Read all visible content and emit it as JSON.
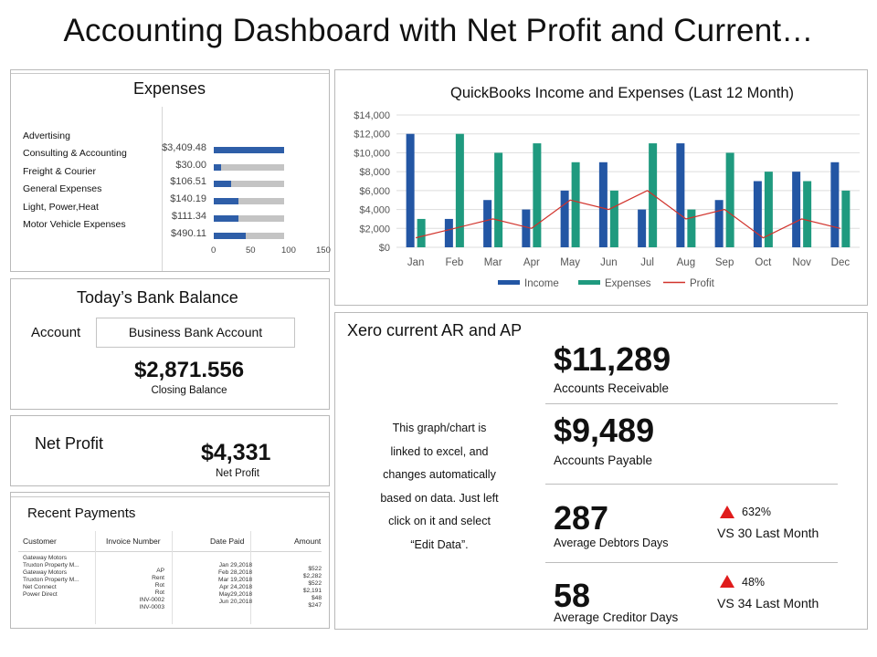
{
  "title": "Accounting Dashboard with Net Profit and Current…",
  "expenses": {
    "title": "Expenses",
    "categories": [
      "Advertising",
      "Consulting & Accounting",
      "Freight & Courier",
      "General Expenses",
      "Light, Power,Heat",
      "Motor Vehicle Expenses"
    ],
    "bar_labels": [
      "$3,409.48",
      "$30.00",
      "$106.51",
      "$140.19",
      "$111.34",
      "$490.11"
    ],
    "bar_fractions": [
      1.0,
      0.1,
      0.25,
      0.35,
      0.35,
      0.45
    ],
    "axis_ticks": [
      "0",
      "50",
      "100",
      "150"
    ],
    "colors": {
      "fill": "#2e5ea8",
      "track": "#c4c4c4"
    }
  },
  "bank": {
    "title": "Today’s Bank Balance",
    "account_label": "Account",
    "account_value": "Business Bank Account",
    "balance": "$2,871.556",
    "balance_label": "Closing Balance"
  },
  "net_profit": {
    "title": "Net Profit",
    "value": "$4,331",
    "value_label": "Net Profit"
  },
  "payments": {
    "title": "Recent Payments",
    "headers": [
      "Customer",
      "Invoice Number",
      "Date Paid",
      "Amount"
    ],
    "customers": [
      "Gateway Motors",
      "Truxton Property M...",
      "Gateway Motors",
      "Truxton Property M...",
      "Net Connect",
      "Power Direct"
    ],
    "invoices": [
      "AP",
      "Rent",
      "Rot",
      "Rot",
      "INV-0002",
      "INV-0003"
    ],
    "dates": [
      "Jan 29,2018",
      "Feb 28,2018",
      "Mar 19,2018",
      "Apr 24,2018",
      "May29,2018",
      "Jun 20,2018"
    ],
    "amounts": [
      "$522",
      "$2,282",
      "$522",
      "$2,191",
      "$48",
      "$247"
    ]
  },
  "chart": {
    "title": "QuickBooks Income and Expenses (Last 12 Month)"
  },
  "chart_data": {
    "type": "bar",
    "title": "QuickBooks Income and Expenses (Last 12 Month)",
    "categories": [
      "Jan",
      "Feb",
      "Mar",
      "Apr",
      "May",
      "Jun",
      "Jul",
      "Aug",
      "Sep",
      "Oct",
      "Nov",
      "Dec"
    ],
    "series": [
      {
        "name": "Income",
        "type": "bar",
        "color": "#2356a4",
        "values": [
          12000,
          3000,
          5000,
          4000,
          6000,
          9000,
          4000,
          11000,
          5000,
          7000,
          8000,
          9000
        ]
      },
      {
        "name": "Expenses",
        "type": "bar",
        "color": "#1f9a7f",
        "values": [
          3000,
          12000,
          10000,
          11000,
          9000,
          6000,
          11000,
          4000,
          10000,
          8000,
          7000,
          6000
        ]
      },
      {
        "name": "Profit",
        "type": "line",
        "color": "#d1322b",
        "values": [
          1000,
          2000,
          3000,
          2000,
          5000,
          4000,
          6000,
          3000,
          4000,
          1000,
          3000,
          2000
        ]
      }
    ],
    "y_ticks": [
      "$0",
      "$2,000",
      "$4,000",
      "$6,000",
      "$8,000",
      "$10,000",
      "$12,000",
      "$14,000"
    ],
    "ylim": [
      0,
      14000
    ],
    "grid": true,
    "legend": "bottom"
  },
  "xero": {
    "title": "Xero current AR and AP",
    "note_lines": [
      "This graph/chart is",
      "linked to excel, and",
      "changes automatically",
      "based on data. Just left",
      "click on it and select",
      "“Edit Data”."
    ],
    "ar_value": "$11,289",
    "ar_label": "Accounts Receivable",
    "ap_value": "$9,489",
    "ap_label": "Accounts Payable",
    "debtors_value": "287",
    "debtors_label": "Average Debtors Days",
    "debtors_pct": "632%",
    "debtors_vs": "VS 30 Last Month",
    "creditor_value": "58",
    "creditor_label": "Average Creditor Days",
    "creditor_pct": "48%",
    "creditor_vs": "VS 34 Last Month",
    "up_color": "#e01b1b"
  }
}
